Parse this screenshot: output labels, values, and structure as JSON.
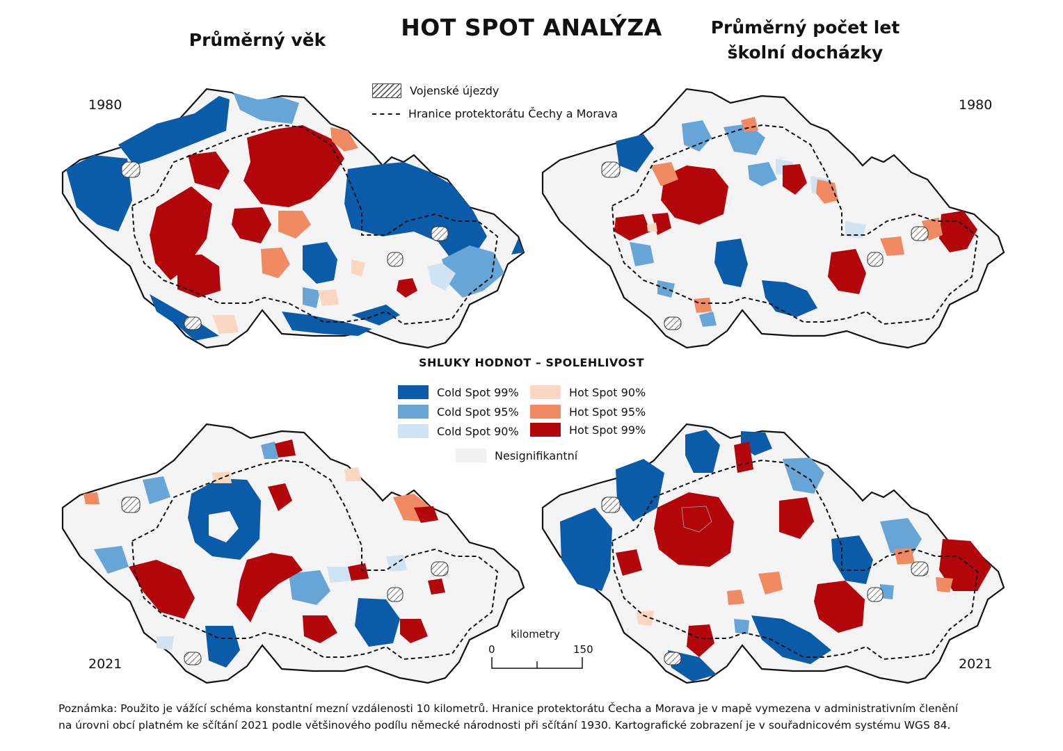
{
  "main_title": "HOT SPOT ANALÝZA",
  "col_left_title": "Průměrný věk",
  "col_right_title_line1": "Průměrný počet let",
  "col_right_title_line2": "školní docházky",
  "year_top": "1980",
  "year_bottom": "2021",
  "legend_top": {
    "military_label": "Vojenské újezdy",
    "border_label": "Hranice protektorátu Čechy a Morava"
  },
  "cluster_legend": {
    "title": "SHLUKY HODNOT – SPOLEHLIVOST",
    "items": [
      {
        "label": "Cold Spot 99%",
        "color": "#0b5ca8"
      },
      {
        "label": "Cold Spot 95%",
        "color": "#66a5d5"
      },
      {
        "label": "Cold Spot 90%",
        "color": "#cfe3f2"
      },
      {
        "label": "Hot Spot 90%",
        "color": "#fbd7c2"
      },
      {
        "label": "Hot Spot 95%",
        "color": "#ef8a62"
      },
      {
        "label": "Hot Spot 99%",
        "color": "#b2060a"
      },
      {
        "label": "Nesignifikantní",
        "color": "#f4f4f4"
      }
    ]
  },
  "scale": {
    "title": "kilometry",
    "start": "0",
    "end": "150"
  },
  "note_line1": "Poznámka: Použito je vážící schéma konstantní mezní vzdálenosti 10 kilometrů. Hranice protektorátu Čecha a Morava je v mapě vymezena v administrativním členění",
  "note_line2": "na úrovni obcí platném ke sčítání 2021 podle většinového podílu německé národnosti při sčítání 1930. Kartografické zobrazení je v souřadnicovém systému WGS 84."
}
